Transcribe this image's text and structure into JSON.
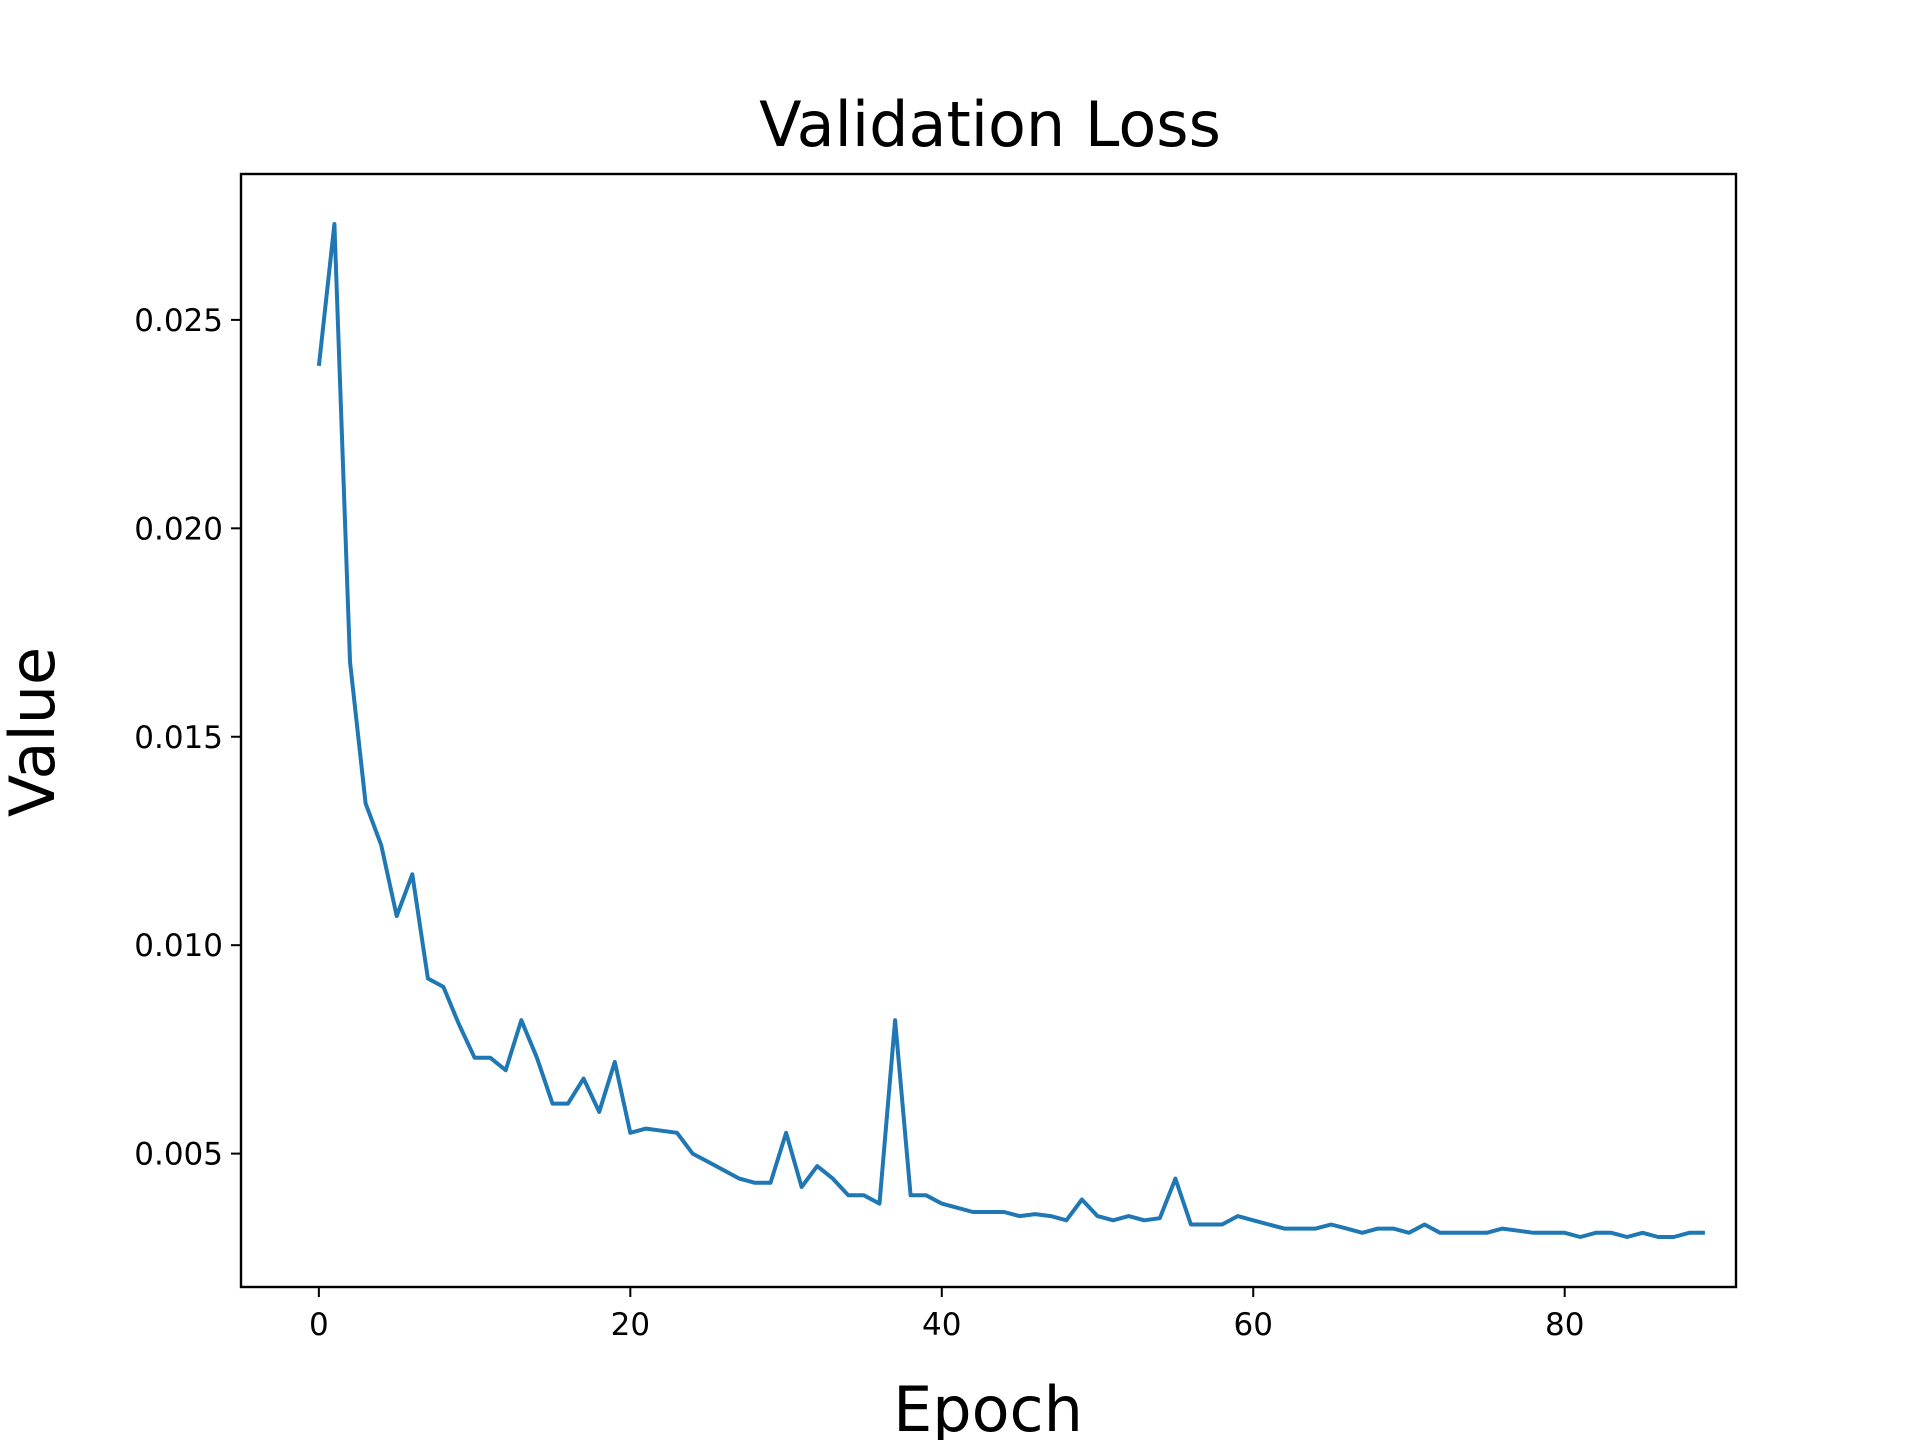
{
  "chart_data": {
    "type": "line",
    "title": "Validation Loss",
    "xlabel": "Epoch",
    "ylabel": "Value",
    "xlim": [
      -5,
      91
    ],
    "ylim": [
      0.0018,
      0.0285
    ],
    "xticks": [
      0,
      20,
      40,
      60,
      80
    ],
    "yticks": [
      0.005,
      0.01,
      0.015,
      0.02,
      0.025
    ],
    "xtick_labels": [
      "0",
      "20",
      "40",
      "60",
      "80"
    ],
    "ytick_labels": [
      "0.005",
      "0.010",
      "0.015",
      "0.020",
      "0.025"
    ],
    "grid": false,
    "legend": "none",
    "series": [
      {
        "color": "#1f77b4",
        "x": [
          0,
          1,
          2,
          3,
          4,
          5,
          6,
          7,
          8,
          9,
          10,
          11,
          12,
          13,
          14,
          15,
          16,
          17,
          18,
          19,
          20,
          21,
          22,
          23,
          24,
          25,
          26,
          27,
          28,
          29,
          30,
          31,
          32,
          33,
          34,
          35,
          36,
          37,
          38,
          39,
          40,
          41,
          42,
          43,
          44,
          45,
          46,
          47,
          48,
          49,
          50,
          51,
          52,
          53,
          54,
          55,
          56,
          57,
          58,
          59,
          60,
          61,
          62,
          63,
          64,
          65,
          66,
          67,
          68,
          69,
          70,
          71,
          72,
          73,
          74,
          75,
          76,
          77,
          78,
          79,
          80,
          81,
          82,
          83,
          84,
          85,
          86,
          87,
          88,
          89
        ],
        "y": [
          0.0239,
          0.0273,
          0.0168,
          0.0134,
          0.0124,
          0.0107,
          0.0117,
          0.0092,
          0.009,
          0.0081,
          0.0073,
          0.0073,
          0.007,
          0.0082,
          0.0073,
          0.0062,
          0.0062,
          0.0068,
          0.006,
          0.0072,
          0.0055,
          0.0056,
          0.00555,
          0.0055,
          0.005,
          0.0048,
          0.0046,
          0.0044,
          0.0043,
          0.0043,
          0.0055,
          0.0042,
          0.0047,
          0.0044,
          0.004,
          0.004,
          0.0038,
          0.0082,
          0.004,
          0.004,
          0.0038,
          0.0037,
          0.0036,
          0.0036,
          0.0036,
          0.0035,
          0.00355,
          0.0035,
          0.0034,
          0.0039,
          0.0035,
          0.0034,
          0.0035,
          0.0034,
          0.00345,
          0.0044,
          0.0033,
          0.0033,
          0.0033,
          0.0035,
          0.0034,
          0.0033,
          0.0032,
          0.0032,
          0.0032,
          0.0033,
          0.0032,
          0.0031,
          0.0032,
          0.0032,
          0.0031,
          0.0033,
          0.0031,
          0.0031,
          0.0031,
          0.0031,
          0.0032,
          0.00315,
          0.0031,
          0.0031,
          0.0031,
          0.003,
          0.0031,
          0.0031,
          0.003,
          0.0031,
          0.003,
          0.003,
          0.0031,
          0.0031
        ]
      }
    ]
  }
}
